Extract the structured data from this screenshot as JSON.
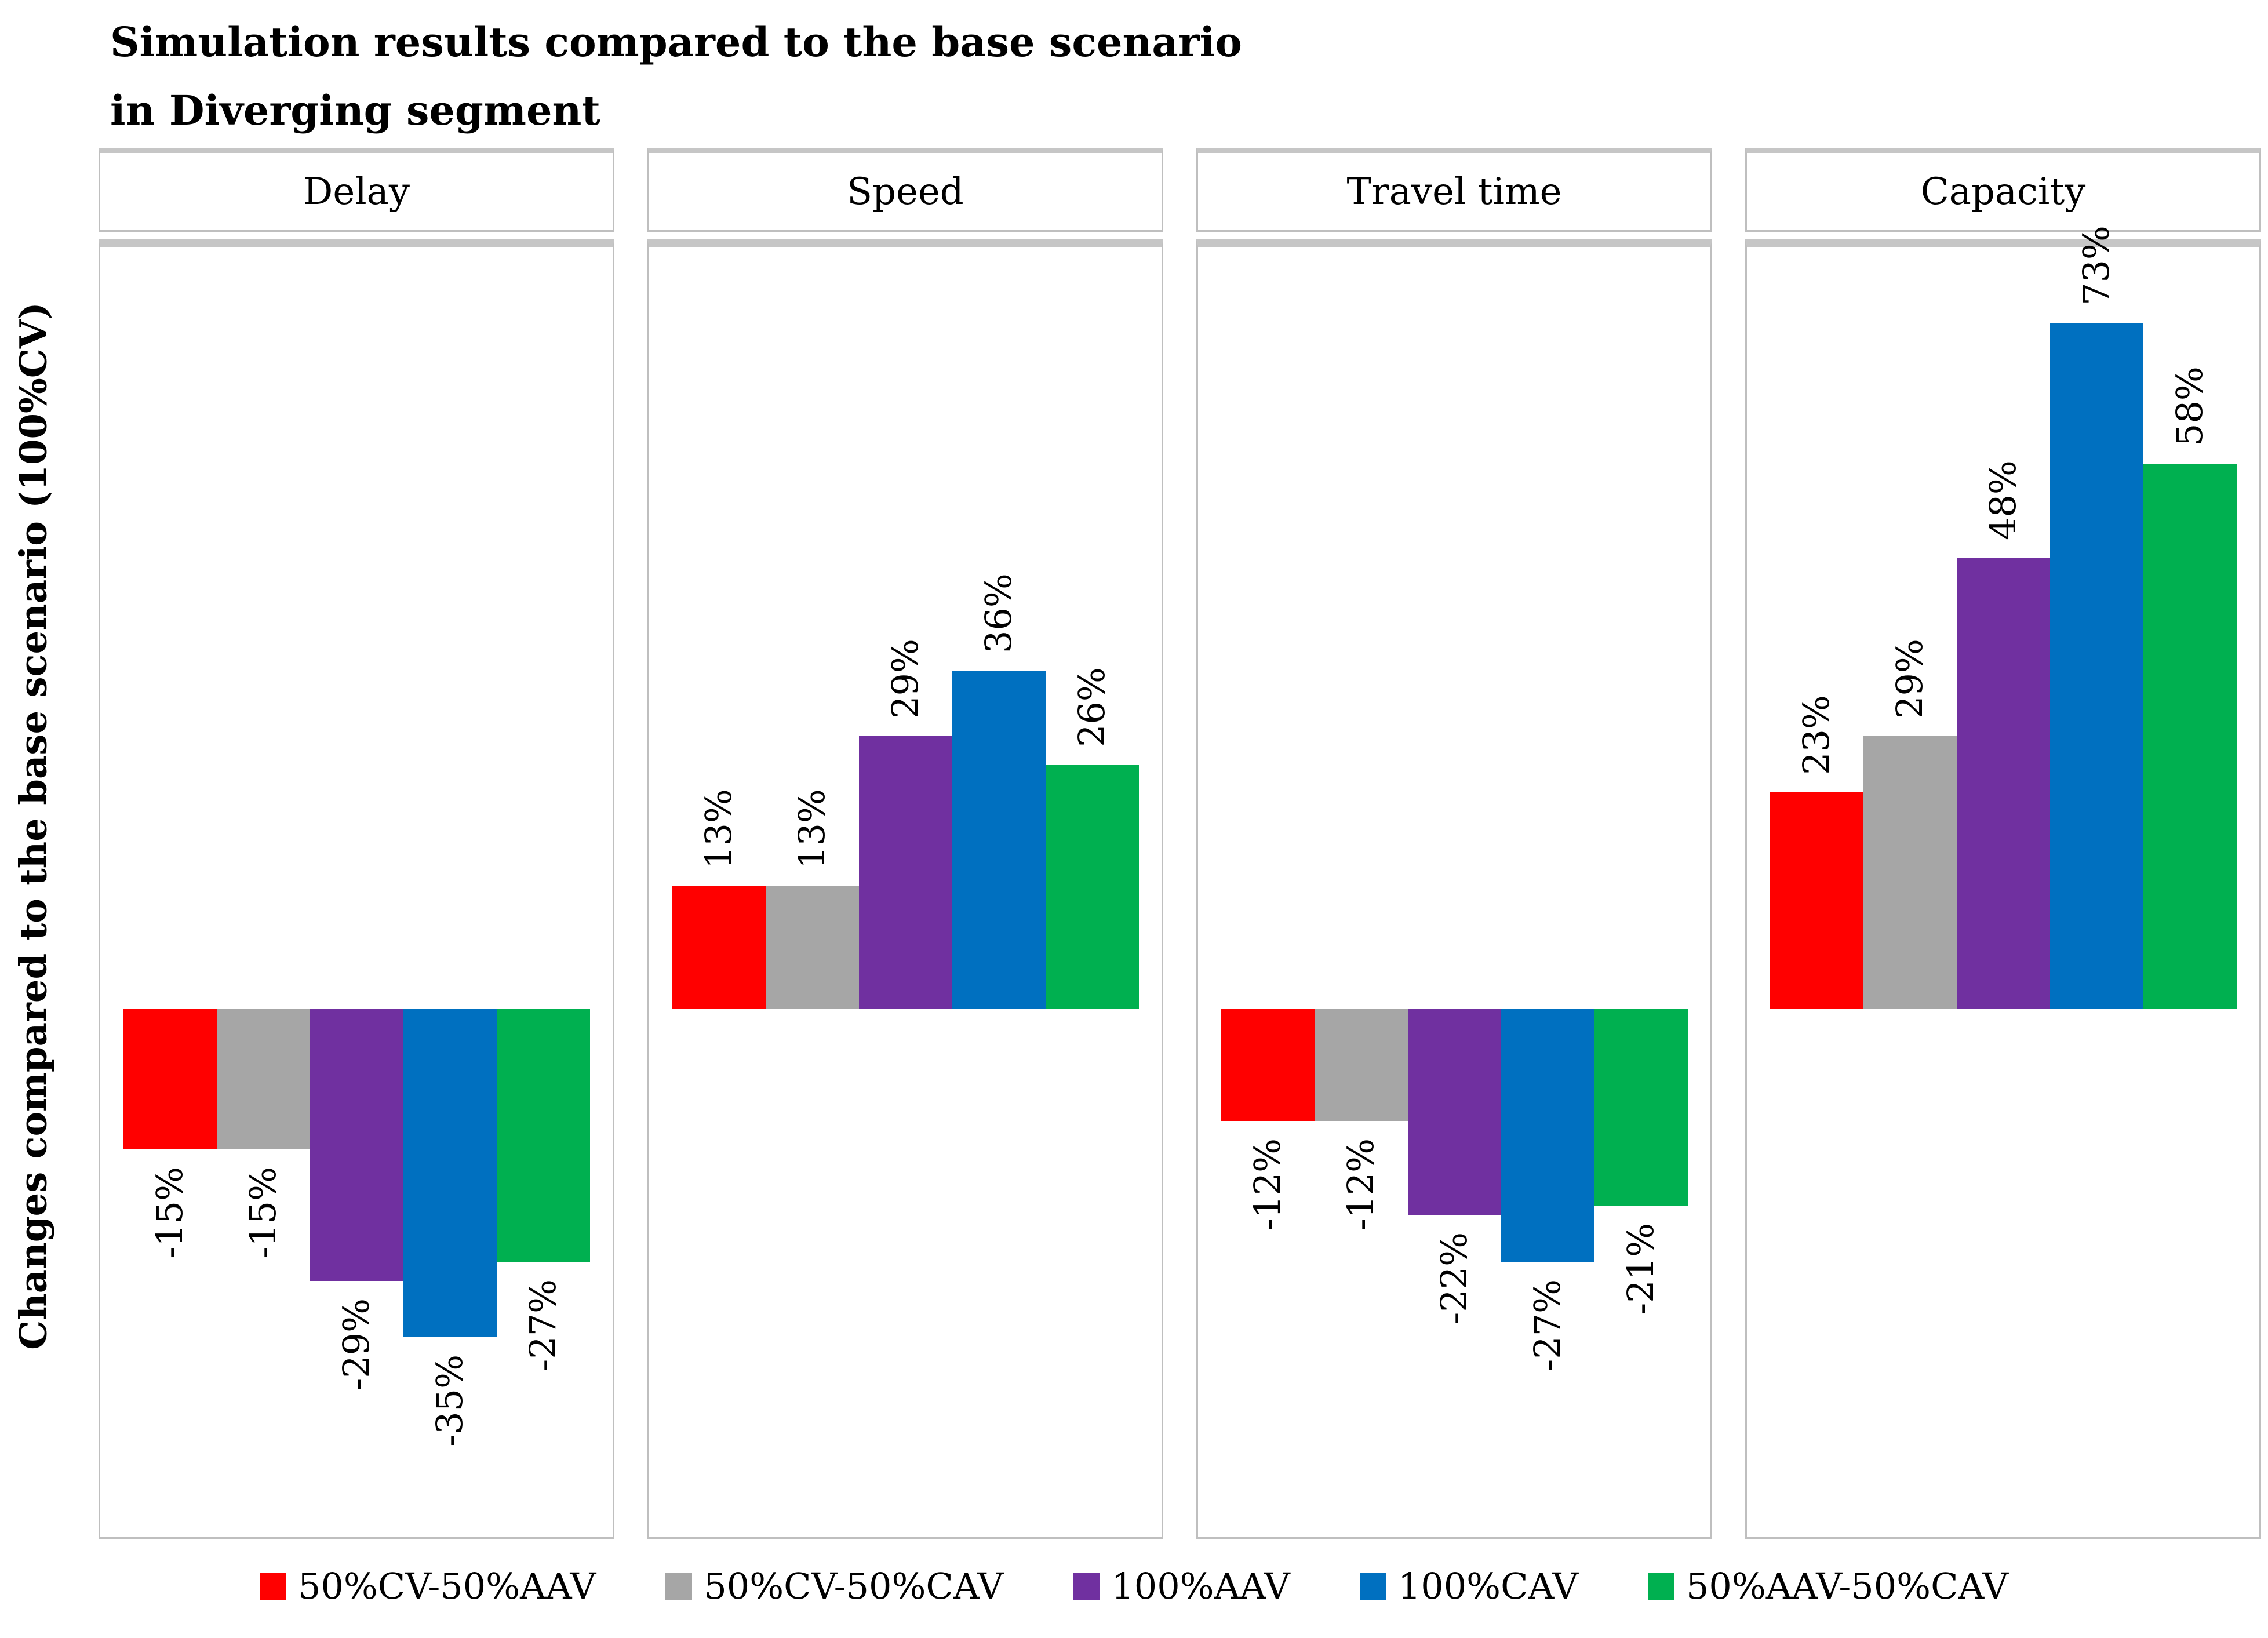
{
  "title": {
    "line1": "Simulation results compared to the base scenario",
    "line2": "in Diverging segment"
  },
  "y_axis_label": "Changes compared to the base scenario (100%CV)",
  "chart_data": {
    "type": "bar",
    "title": "Simulation results compared to the base scenario in Diverging segment",
    "ylabel": "Changes compared to the base scenario (100%CV)",
    "value_unit": "%",
    "data_labels": "rotated 90deg, reading bottom-to-top, outside bar end",
    "legend_position": "bottom",
    "grid": false,
    "shared_baseline": true,
    "axis_range_percent": [
      -56,
      82
    ],
    "panels": [
      "Delay",
      "Speed",
      "Travel time",
      "Capacity"
    ],
    "series": [
      {
        "name": "50%CV-50%AAV",
        "color": "#FF0000",
        "values": [
          -15,
          13,
          -12,
          23
        ]
      },
      {
        "name": "50%CV-50%CAV",
        "color": "#A6A6A6",
        "values": [
          -15,
          13,
          -12,
          29
        ]
      },
      {
        "name": "100%AAV",
        "color": "#7030A0",
        "values": [
          -29,
          29,
          -22,
          48
        ]
      },
      {
        "name": "100%CAV",
        "color": "#0070C0",
        "values": [
          -35,
          36,
          -27,
          73
        ]
      },
      {
        "name": "50%AAV-50%CAV",
        "color": "#00B050",
        "values": [
          -27,
          26,
          -21,
          58
        ]
      }
    ]
  }
}
